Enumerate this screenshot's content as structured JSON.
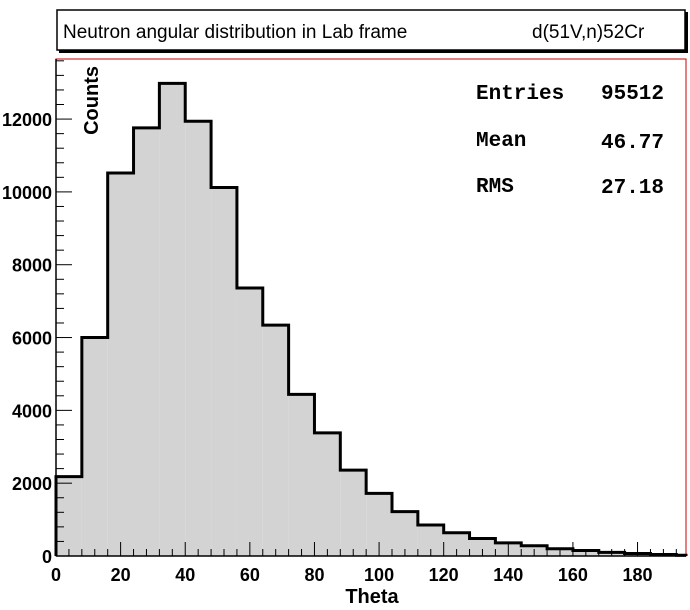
{
  "title_box": {
    "title": "Neutron angular distribution in Lab frame",
    "reaction": "d(51V,n)52Cr"
  },
  "stats_box": {
    "entries_label": "Entries",
    "entries_value": "95512",
    "mean_label": "Mean",
    "mean_value": "46.77",
    "rms_label": "RMS",
    "rms_value": "27.18"
  },
  "colors": {
    "fill": "#d3d3d3",
    "line": "#000000",
    "frame_accent": "#cc0000"
  },
  "chart_data": {
    "type": "bar",
    "histogram": true,
    "xlabel": "Theta",
    "ylabel": "Counts",
    "xlim": [
      0,
      195
    ],
    "ylim": [
      0,
      13650
    ],
    "bin_edges": [
      0,
      8,
      16,
      24,
      32,
      40,
      48,
      56,
      64,
      72,
      80,
      88,
      96,
      104,
      112,
      120,
      128,
      136,
      144,
      152,
      160,
      168,
      176,
      184,
      192,
      195
    ],
    "values": [
      2180,
      6000,
      10520,
      11760,
      12980,
      11940,
      10120,
      7360,
      6340,
      4440,
      3380,
      2360,
      1720,
      1220,
      850,
      640,
      480,
      360,
      280,
      200,
      150,
      100,
      70,
      40,
      20
    ],
    "x_ticks": [
      0,
      20,
      40,
      60,
      80,
      100,
      120,
      140,
      160,
      180
    ],
    "x_tick_labels": [
      "0",
      "20",
      "40",
      "60",
      "80",
      "100",
      "120",
      "140",
      "160",
      "180"
    ],
    "y_ticks": [
      0,
      2000,
      4000,
      6000,
      8000,
      10000,
      12000
    ],
    "y_tick_labels": [
      "0",
      "2000",
      "4000",
      "6000",
      "8000",
      "10000",
      "12000"
    ],
    "grid": false,
    "legend": "none"
  }
}
